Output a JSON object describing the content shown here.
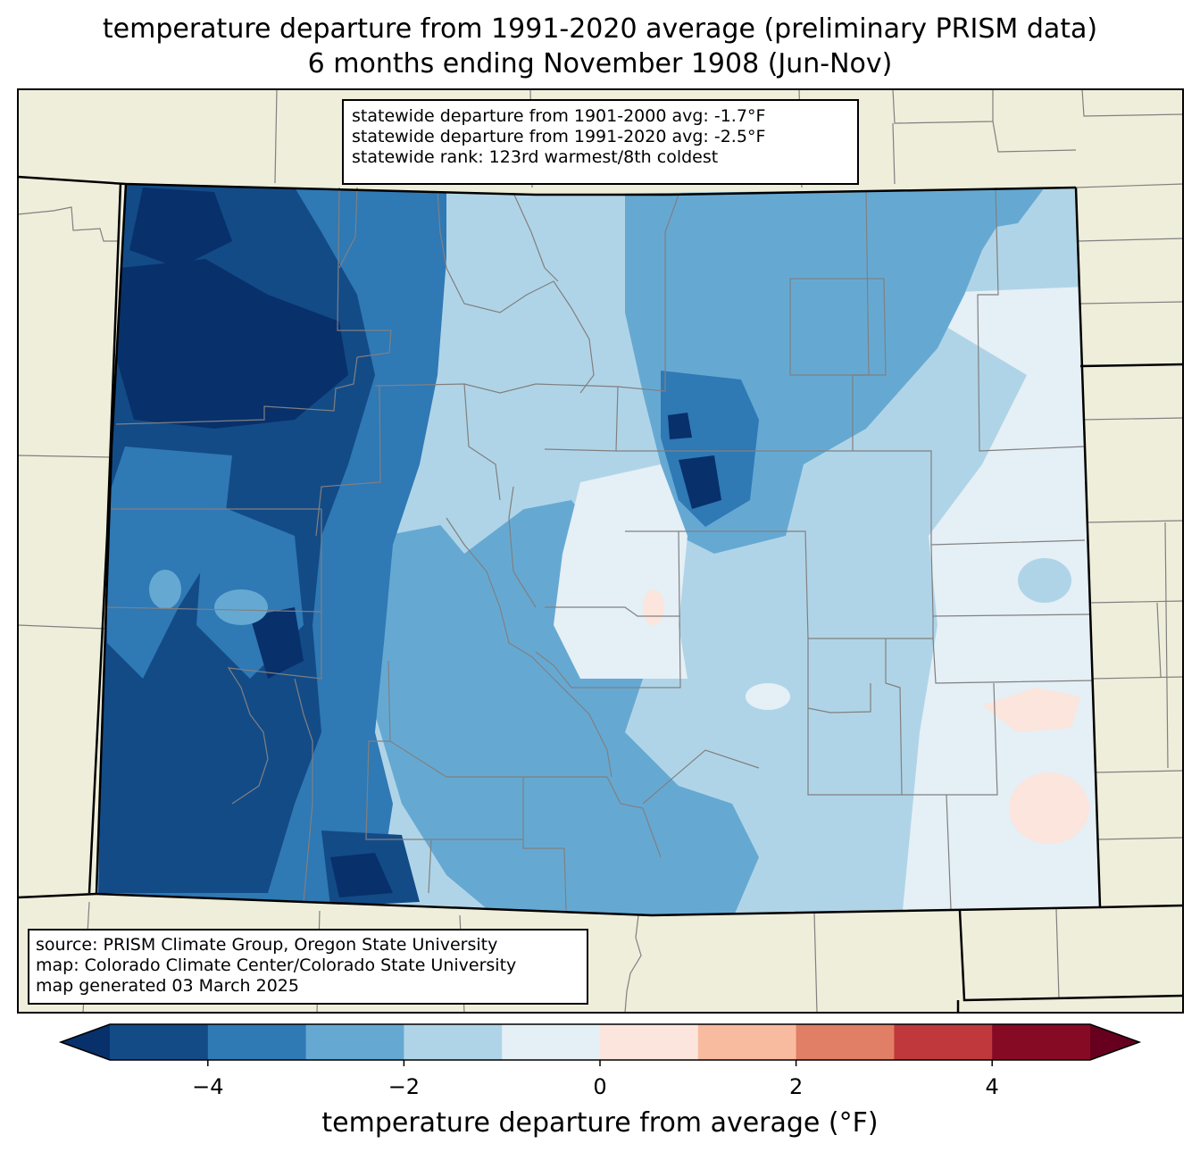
{
  "title": {
    "line1": "temperature departure from 1991-2020 average (preliminary PRISM data)",
    "line2": "6 months ending November 1908 (Jun-Nov)"
  },
  "stats": {
    "line1": "statewide departure from 1901-2000 avg: -1.7°F",
    "line2": "statewide departure from 1991-2020 avg: -2.5°F",
    "line3": "statewide rank: 123rd warmest/8th coldest"
  },
  "source": {
    "line1": "source: PRISM Climate Group, Oregon State University",
    "line2": "map: Colorado Climate Center/Colorado State University",
    "line3": "map generated 03 March 2025"
  },
  "colorbar": {
    "label": "temperature departure from average (°F)",
    "ticks": [
      "−4",
      "−2",
      "0",
      "2",
      "4"
    ],
    "tick_values": [
      -4,
      -2,
      0,
      2,
      4
    ],
    "range": [
      -5,
      5
    ],
    "bins": [
      -5,
      -4,
      -3,
      -2,
      -1,
      0,
      1,
      2,
      3,
      4,
      5
    ],
    "colors": [
      "#08306b",
      "#134b87",
      "#2f79b5",
      "#65a9d3",
      "#b0d4e7",
      "#e5eff6",
      "#fbe5dc",
      "#f8bba0",
      "#e07e66",
      "#c0383b",
      "#870a24",
      "#67001f"
    ]
  },
  "map_colors": {
    "land": "#efeedb",
    "county_line": "#808080",
    "state_line": "#000000"
  }
}
